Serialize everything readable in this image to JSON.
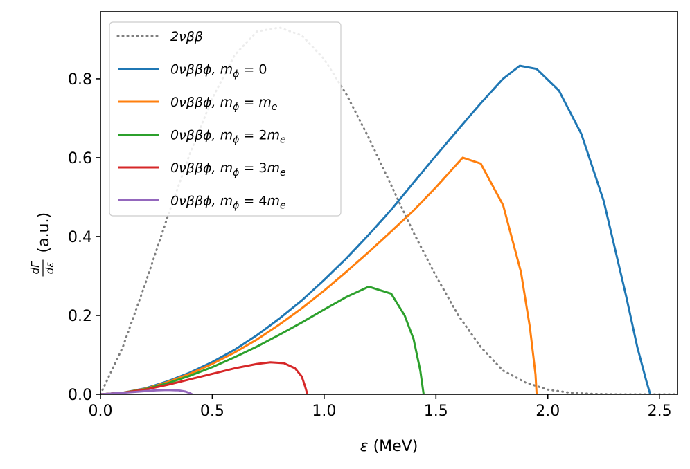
{
  "chart_data": {
    "type": "line",
    "xlabel": "ε (MeV)",
    "ylabel_fraction_num": "dΓ",
    "ylabel_fraction_den": "dε",
    "ylabel_suffix": "(a.u.)",
    "xlim": [
      0.0,
      2.58
    ],
    "ylim": [
      0.0,
      0.97
    ],
    "x_ticks": [
      0.0,
      0.5,
      1.0,
      1.5,
      2.0,
      2.5
    ],
    "x_tick_labels": [
      "0.0",
      "0.5",
      "1.0",
      "1.5",
      "2.0",
      "2.5"
    ],
    "y_ticks": [
      0.0,
      0.2,
      0.4,
      0.6,
      0.8
    ],
    "y_tick_labels": [
      "0.0",
      "0.2",
      "0.4",
      "0.6",
      "0.8"
    ],
    "grid": false,
    "legend_position": "top-left",
    "series": [
      {
        "name": "2νββ",
        "color": "#7f7f7f",
        "style": "dotted",
        "x": [
          0.0,
          0.1,
          0.2,
          0.3,
          0.4,
          0.5,
          0.6,
          0.7,
          0.8,
          0.9,
          1.0,
          1.1,
          1.2,
          1.3,
          1.4,
          1.5,
          1.6,
          1.7,
          1.8,
          1.9,
          2.0,
          2.1,
          2.2,
          2.3,
          2.4,
          2.46,
          2.58
        ],
        "values": [
          0.0,
          0.12,
          0.28,
          0.45,
          0.61,
          0.75,
          0.86,
          0.92,
          0.93,
          0.91,
          0.85,
          0.76,
          0.65,
          0.53,
          0.41,
          0.3,
          0.2,
          0.12,
          0.06,
          0.03,
          0.012,
          0.004,
          0.001,
          0.0,
          0.0,
          0.0,
          0.0
        ]
      },
      {
        "name": "0νββϕ, m_ϕ = 0",
        "color": "#1f77b4",
        "style": "solid",
        "x": [
          0.0,
          0.1,
          0.2,
          0.3,
          0.4,
          0.5,
          0.6,
          0.7,
          0.8,
          0.9,
          1.0,
          1.1,
          1.2,
          1.3,
          1.4,
          1.5,
          1.6,
          1.7,
          1.8,
          1.875,
          1.95,
          2.05,
          2.15,
          2.25,
          2.35,
          2.4,
          2.44,
          2.458
        ],
        "values": [
          0.0,
          0.004,
          0.015,
          0.033,
          0.055,
          0.082,
          0.113,
          0.15,
          0.192,
          0.238,
          0.29,
          0.345,
          0.405,
          0.468,
          0.537,
          0.605,
          0.672,
          0.738,
          0.8,
          0.833,
          0.825,
          0.77,
          0.66,
          0.49,
          0.25,
          0.12,
          0.035,
          0.0
        ]
      },
      {
        "name": "0νββϕ, m_ϕ = m_e",
        "color": "#ff7f0e",
        "style": "solid",
        "x": [
          0.0,
          0.1,
          0.2,
          0.3,
          0.4,
          0.5,
          0.6,
          0.7,
          0.8,
          0.9,
          1.0,
          1.1,
          1.2,
          1.3,
          1.4,
          1.5,
          1.62,
          1.7,
          1.8,
          1.88,
          1.92,
          1.945,
          1.95
        ],
        "values": [
          0.0,
          0.004,
          0.014,
          0.031,
          0.052,
          0.077,
          0.106,
          0.139,
          0.177,
          0.218,
          0.263,
          0.311,
          0.361,
          0.413,
          0.466,
          0.525,
          0.6,
          0.585,
          0.48,
          0.31,
          0.17,
          0.05,
          0.0
        ]
      },
      {
        "name": "0νββϕ, m_ϕ = 2m_e",
        "color": "#2ca02c",
        "style": "solid",
        "x": [
          0.0,
          0.1,
          0.2,
          0.3,
          0.4,
          0.5,
          0.6,
          0.7,
          0.8,
          0.9,
          1.0,
          1.1,
          1.2,
          1.3,
          1.36,
          1.4,
          1.43,
          1.445
        ],
        "values": [
          0.0,
          0.004,
          0.013,
          0.028,
          0.047,
          0.069,
          0.094,
          0.121,
          0.151,
          0.182,
          0.215,
          0.247,
          0.273,
          0.255,
          0.2,
          0.14,
          0.06,
          0.0
        ]
      },
      {
        "name": "0νββϕ, m_ϕ = 3m_e",
        "color": "#d62728",
        "style": "solid",
        "x": [
          0.0,
          0.1,
          0.2,
          0.3,
          0.4,
          0.5,
          0.6,
          0.7,
          0.76,
          0.82,
          0.87,
          0.9,
          0.915,
          0.925
        ],
        "values": [
          0.0,
          0.004,
          0.012,
          0.024,
          0.038,
          0.052,
          0.066,
          0.077,
          0.081,
          0.079,
          0.066,
          0.045,
          0.02,
          0.0
        ]
      },
      {
        "name": "0νββϕ, m_ϕ = 4m_e",
        "color": "#9467bd",
        "style": "solid",
        "x": [
          0.0,
          0.05,
          0.1,
          0.15,
          0.2,
          0.25,
          0.3,
          0.35,
          0.38,
          0.4,
          0.41
        ],
        "values": [
          0.0,
          0.002,
          0.004,
          0.006,
          0.008,
          0.01,
          0.011,
          0.01,
          0.007,
          0.003,
          0.0
        ]
      }
    ],
    "legend": [
      {
        "prefix": "2νββ",
        "suffix": ""
      },
      {
        "prefix": "0νββϕ,",
        "suffix": "m",
        "sub": "ϕ",
        "rhs_text": " = 0",
        "rhs_italic": ""
      },
      {
        "prefix": "0νββϕ,",
        "suffix": "m",
        "sub": "ϕ",
        "rhs_text": " = ",
        "rhs_italic": "m",
        "rhs_sub": "e"
      },
      {
        "prefix": "0νββϕ,",
        "suffix": "m",
        "sub": "ϕ",
        "rhs_text": " = 2",
        "rhs_italic": "m",
        "rhs_sub": "e"
      },
      {
        "prefix": "0νββϕ,",
        "suffix": "m",
        "sub": "ϕ",
        "rhs_text": " = 3",
        "rhs_italic": "m",
        "rhs_sub": "e"
      },
      {
        "prefix": "0νββϕ,",
        "suffix": "m",
        "sub": "ϕ",
        "rhs_text": " = 4",
        "rhs_italic": "m",
        "rhs_sub": "e"
      }
    ]
  }
}
